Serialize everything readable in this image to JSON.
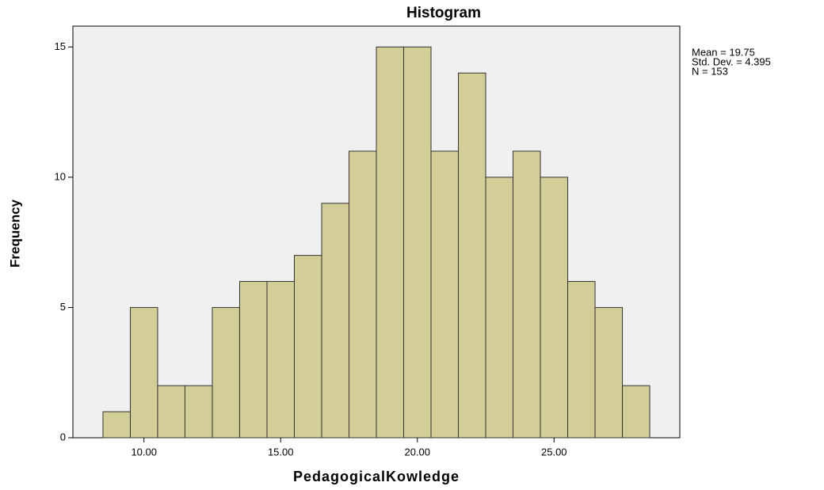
{
  "chart_data": {
    "type": "histogram",
    "title": "Histogram",
    "xlabel": "PedagogicalKowledge",
    "ylabel": "Frequency",
    "bins": [
      8.5,
      9.5,
      10.5,
      11.5,
      12.5,
      13.5,
      14.5,
      15.5,
      16.5,
      17.5,
      18.5,
      19.5,
      20.5,
      21.5,
      22.5,
      23.5,
      24.5,
      25.5,
      26.5,
      27.5,
      28.5
    ],
    "counts": [
      1,
      5,
      2,
      2,
      5,
      6,
      6,
      7,
      9,
      11,
      15,
      15,
      11,
      14,
      10,
      11,
      10,
      6,
      5,
      2
    ],
    "color": "#d3ce97",
    "xlim": [
      7.4,
      29.6
    ],
    "xticks": [
      {
        "value": 10,
        "label": "10.00"
      },
      {
        "value": 15,
        "label": "15.00"
      },
      {
        "value": 20,
        "label": "20.00"
      },
      {
        "value": 25,
        "label": "25.00"
      }
    ],
    "ylim": [
      0,
      15.8
    ],
    "yticks": [
      0,
      5,
      10,
      15
    ],
    "annotations": [
      "Mean = 19.75",
      "Std. Dev. = 4.395",
      "N = 153"
    ]
  }
}
